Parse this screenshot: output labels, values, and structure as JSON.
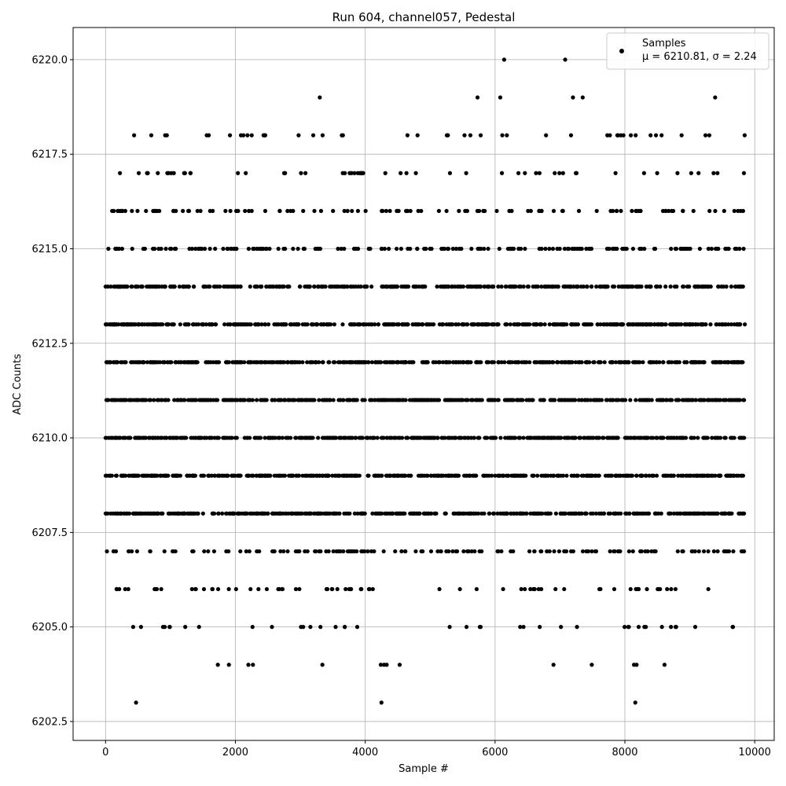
{
  "chart_data": {
    "type": "scatter",
    "title": "Run 604, channel057, Pedestal",
    "xlabel": "Sample #",
    "ylabel": "ADC Counts",
    "xlim": [
      -500,
      10300
    ],
    "ylim": [
      6202.0,
      6220.85
    ],
    "xticks": [
      0,
      2000,
      4000,
      6000,
      8000,
      10000
    ],
    "yticks": [
      6202.5,
      6205.0,
      6207.5,
      6210.0,
      6212.5,
      6215.0,
      6217.5,
      6220.0
    ],
    "xtick_labels": [
      "0",
      "2000",
      "4000",
      "6000",
      "8000",
      "10000"
    ],
    "ytick_labels": [
      "6202.5",
      "6205.0",
      "6207.5",
      "6210.0",
      "6212.5",
      "6215.0",
      "6217.5",
      "6220.0"
    ],
    "grid": true,
    "legend": {
      "placement": "top-right",
      "series_label": "Samples",
      "stats_text": "μ = 6210.81, σ = 2.24"
    },
    "marker_color": "#000000",
    "series": [
      {
        "name": "Samples",
        "points": [
          {
            "x": 470,
            "y": 6203
          },
          {
            "x": 4250,
            "y": 6203
          },
          {
            "x": 8160,
            "y": 6203
          },
          {
            "x": 1730,
            "y": 6204
          },
          {
            "x": 1900,
            "y": 6204
          },
          {
            "x": 2200,
            "y": 6204
          },
          {
            "x": 2270,
            "y": 6204
          },
          {
            "x": 3340,
            "y": 6204
          },
          {
            "x": 4240,
            "y": 6204
          },
          {
            "x": 4290,
            "y": 6204
          },
          {
            "x": 4330,
            "y": 6204
          },
          {
            "x": 4530,
            "y": 6204
          },
          {
            "x": 6900,
            "y": 6204
          },
          {
            "x": 7490,
            "y": 6204
          },
          {
            "x": 8140,
            "y": 6204
          },
          {
            "x": 8180,
            "y": 6204
          },
          {
            "x": 8610,
            "y": 6204
          },
          {
            "x": 6140,
            "y": 6220
          },
          {
            "x": 7080,
            "y": 6220
          },
          {
            "x": 3300,
            "y": 6219
          },
          {
            "x": 5730,
            "y": 6219
          },
          {
            "x": 6080,
            "y": 6219
          },
          {
            "x": 7200,
            "y": 6219
          },
          {
            "x": 7350,
            "y": 6219
          },
          {
            "x": 9390,
            "y": 6219
          }
        ],
        "band_levels": [
          6205,
          6206,
          6207,
          6208,
          6209,
          6210,
          6211,
          6212,
          6213,
          6214,
          6215,
          6216,
          6217,
          6218
        ],
        "band_counts": [
          40,
          70,
          150,
          480,
          480,
          480,
          480,
          480,
          480,
          380,
          180,
          110,
          55,
          45
        ],
        "x_range": [
          0,
          9850
        ]
      }
    ]
  }
}
